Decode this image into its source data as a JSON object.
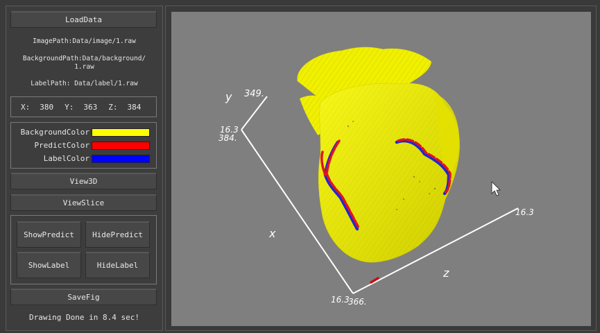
{
  "panel": {
    "load_label": "LoadData",
    "image_path": "ImagePath:Data/image/1.raw",
    "background_path_line1": "BackgroundPath:Data/background/",
    "background_path_line2": "1.raw",
    "label_path": "LabelPath: Data/label/1.raw",
    "coords": {
      "x_label": "X:",
      "x_value": "380",
      "y_label": "Y:",
      "y_value": "363",
      "z_label": "Z:",
      "z_value": "384"
    },
    "colors": [
      {
        "label": "BackgroundColor",
        "color": "#ffff00"
      },
      {
        "label": "PredictColor",
        "color": "#ff0000"
      },
      {
        "label": "LabelColor",
        "color": "#0000ff"
      }
    ],
    "view3d_label": "View3D",
    "viewslice_label": "ViewSlice",
    "show_predict_label": "ShowPredict",
    "hide_predict_label": "HidePredict",
    "show_label_label": "ShowLabel",
    "hide_label_label": "HideLabel",
    "savefig_label": "SaveFig",
    "status": "Drawing Done in 8.4 sec!"
  },
  "viewport": {
    "axes": {
      "y_name": "y",
      "x_name": "x",
      "z_name": "z",
      "y_end_value": "349.",
      "origin_top_value_a": "16.3",
      "origin_top_value_b": "384.",
      "z_end_value": "16.3",
      "origin_bottom_value_a": "16.3",
      "origin_bottom_value_b": "366."
    },
    "surface_color": "#f2f200",
    "predict_color": "#e0141e",
    "label_color": "#1e28d2"
  }
}
